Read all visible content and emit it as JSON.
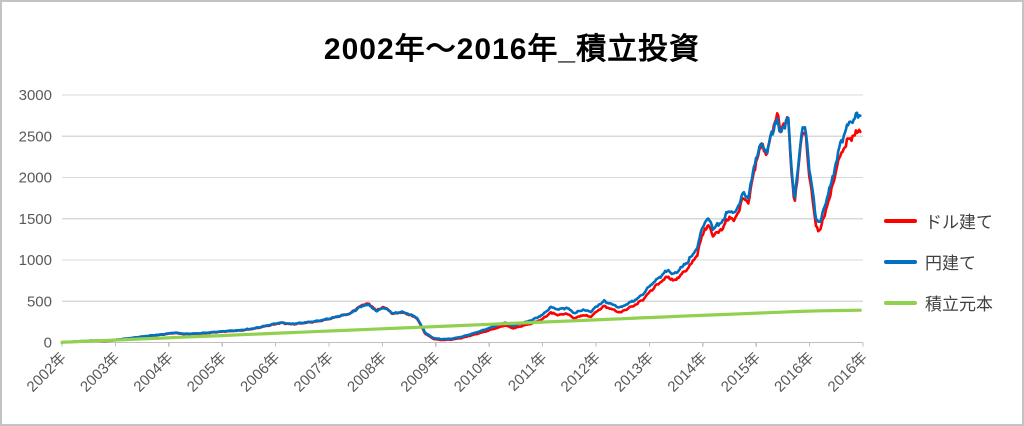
{
  "chart_data": {
    "type": "line",
    "title": "2002年～2016年_積立投資",
    "xlabel": "",
    "ylabel": "",
    "ylim": [
      0,
      3000
    ],
    "xlim": [
      2002,
      2017
    ],
    "y_ticks": [
      0,
      500,
      1000,
      1500,
      2000,
      2500,
      3000
    ],
    "x_tick_labels": [
      "2002年",
      "2003年",
      "2004年",
      "2005年",
      "2006年",
      "2007年",
      "2008年",
      "2009年",
      "2010年",
      "2011年",
      "2012年",
      "2013年",
      "2014年",
      "2015年",
      "2016年",
      "2016年"
    ],
    "grid": true,
    "legend_position": "right",
    "colors": {
      "grid": "#d9d9d9",
      "axis": "#bfbfbf",
      "tick_text": "#595959",
      "title_text": "#000000"
    },
    "series": [
      {
        "name": "ドル建て",
        "color": "#ff0000",
        "width": 2.6,
        "jitter": 0.022,
        "keypoints": [
          [
            2002.0,
            2
          ],
          [
            2002.3,
            11
          ],
          [
            2002.6,
            22
          ],
          [
            2002.8,
            16
          ],
          [
            2003.0,
            30
          ],
          [
            2003.3,
            52
          ],
          [
            2003.6,
            77
          ],
          [
            2003.9,
            97
          ],
          [
            2004.1,
            116
          ],
          [
            2004.3,
            101
          ],
          [
            2004.6,
            108
          ],
          [
            2004.9,
            126
          ],
          [
            2005.1,
            136
          ],
          [
            2005.35,
            146
          ],
          [
            2005.6,
            168
          ],
          [
            2005.9,
            210
          ],
          [
            2006.1,
            238
          ],
          [
            2006.3,
            221
          ],
          [
            2006.5,
            234
          ],
          [
            2006.8,
            258
          ],
          [
            2007.0,
            285
          ],
          [
            2007.2,
            320
          ],
          [
            2007.4,
            352
          ],
          [
            2007.55,
            428
          ],
          [
            2007.7,
            475
          ],
          [
            2007.8,
            442
          ],
          [
            2007.9,
            382
          ],
          [
            2008.0,
            432
          ],
          [
            2008.1,
            402
          ],
          [
            2008.2,
            346
          ],
          [
            2008.35,
            366
          ],
          [
            2008.5,
            338
          ],
          [
            2008.65,
            292
          ],
          [
            2008.8,
            108
          ],
          [
            2008.95,
            45
          ],
          [
            2009.1,
            30
          ],
          [
            2009.3,
            36
          ],
          [
            2009.5,
            58
          ],
          [
            2009.7,
            92
          ],
          [
            2009.9,
            128
          ],
          [
            2010.1,
            168
          ],
          [
            2010.3,
            208
          ],
          [
            2010.45,
            172
          ],
          [
            2010.6,
            198
          ],
          [
            2010.8,
            232
          ],
          [
            2011.0,
            285
          ],
          [
            2011.15,
            362
          ],
          [
            2011.3,
            332
          ],
          [
            2011.45,
            352
          ],
          [
            2011.6,
            292
          ],
          [
            2011.75,
            332
          ],
          [
            2011.9,
            312
          ],
          [
            2012.0,
            368
          ],
          [
            2012.15,
            440
          ],
          [
            2012.3,
            402
          ],
          [
            2012.45,
            362
          ],
          [
            2012.6,
            412
          ],
          [
            2012.75,
            462
          ],
          [
            2012.9,
            532
          ],
          [
            2013.0,
            612
          ],
          [
            2013.2,
            732
          ],
          [
            2013.35,
            802
          ],
          [
            2013.45,
            742
          ],
          [
            2013.6,
            822
          ],
          [
            2013.75,
            922
          ],
          [
            2013.9,
            1072
          ],
          [
            2014.0,
            1332
          ],
          [
            2014.1,
            1422
          ],
          [
            2014.2,
            1295
          ],
          [
            2014.35,
            1365
          ],
          [
            2014.5,
            1525
          ],
          [
            2014.6,
            1475
          ],
          [
            2014.75,
            1745
          ],
          [
            2014.85,
            1705
          ],
          [
            2015.0,
            2205
          ],
          [
            2015.1,
            2385
          ],
          [
            2015.2,
            2285
          ],
          [
            2015.3,
            2565
          ],
          [
            2015.4,
            2785
          ],
          [
            2015.45,
            2525
          ],
          [
            2015.5,
            2685
          ],
          [
            2015.55,
            2625
          ],
          [
            2015.6,
            2725
          ],
          [
            2015.65,
            2155
          ],
          [
            2015.72,
            1655
          ],
          [
            2015.78,
            2055
          ],
          [
            2015.83,
            2405
          ],
          [
            2015.88,
            2565
          ],
          [
            2015.93,
            2485
          ],
          [
            2016.0,
            2005
          ],
          [
            2016.06,
            1705
          ],
          [
            2016.12,
            1405
          ],
          [
            2016.2,
            1355
          ],
          [
            2016.3,
            1605
          ],
          [
            2016.4,
            1805
          ],
          [
            2016.5,
            2105
          ],
          [
            2016.6,
            2305
          ],
          [
            2016.7,
            2425
          ],
          [
            2016.8,
            2505
          ],
          [
            2016.95,
            2565
          ]
        ]
      },
      {
        "name": "円建て",
        "color": "#0070c0",
        "width": 2.6,
        "jitter": 0.022,
        "keypoints": [
          [
            2002.0,
            2
          ],
          [
            2002.3,
            12
          ],
          [
            2002.6,
            24
          ],
          [
            2002.8,
            18
          ],
          [
            2003.0,
            32
          ],
          [
            2003.3,
            55
          ],
          [
            2003.6,
            80
          ],
          [
            2003.9,
            100
          ],
          [
            2004.1,
            120
          ],
          [
            2004.3,
            105
          ],
          [
            2004.6,
            112
          ],
          [
            2004.9,
            130
          ],
          [
            2005.1,
            140
          ],
          [
            2005.35,
            150
          ],
          [
            2005.6,
            172
          ],
          [
            2005.9,
            215
          ],
          [
            2006.1,
            242
          ],
          [
            2006.3,
            225
          ],
          [
            2006.5,
            238
          ],
          [
            2006.8,
            262
          ],
          [
            2007.0,
            288
          ],
          [
            2007.2,
            322
          ],
          [
            2007.4,
            350
          ],
          [
            2007.55,
            418
          ],
          [
            2007.7,
            462
          ],
          [
            2007.8,
            430
          ],
          [
            2007.9,
            375
          ],
          [
            2008.0,
            422
          ],
          [
            2008.1,
            398
          ],
          [
            2008.2,
            350
          ],
          [
            2008.35,
            372
          ],
          [
            2008.5,
            345
          ],
          [
            2008.65,
            300
          ],
          [
            2008.8,
            120
          ],
          [
            2008.95,
            55
          ],
          [
            2009.1,
            40
          ],
          [
            2009.3,
            46
          ],
          [
            2009.5,
            72
          ],
          [
            2009.7,
            110
          ],
          [
            2009.9,
            152
          ],
          [
            2010.1,
            198
          ],
          [
            2010.3,
            242
          ],
          [
            2010.45,
            202
          ],
          [
            2010.6,
            232
          ],
          [
            2010.8,
            272
          ],
          [
            2011.0,
            335
          ],
          [
            2011.15,
            430
          ],
          [
            2011.3,
            400
          ],
          [
            2011.45,
            422
          ],
          [
            2011.6,
            355
          ],
          [
            2011.75,
            398
          ],
          [
            2011.9,
            372
          ],
          [
            2012.0,
            432
          ],
          [
            2012.15,
            500
          ],
          [
            2012.3,
            462
          ],
          [
            2012.45,
            422
          ],
          [
            2012.6,
            472
          ],
          [
            2012.75,
            522
          ],
          [
            2012.9,
            600
          ],
          [
            2013.0,
            680
          ],
          [
            2013.2,
            800
          ],
          [
            2013.35,
            880
          ],
          [
            2013.45,
            820
          ],
          [
            2013.6,
            905
          ],
          [
            2013.75,
            1005
          ],
          [
            2013.9,
            1155
          ],
          [
            2014.0,
            1420
          ],
          [
            2014.1,
            1505
          ],
          [
            2014.2,
            1385
          ],
          [
            2014.35,
            1455
          ],
          [
            2014.5,
            1605
          ],
          [
            2014.6,
            1555
          ],
          [
            2014.75,
            1805
          ],
          [
            2014.85,
            1755
          ],
          [
            2015.0,
            2255
          ],
          [
            2015.1,
            2405
          ],
          [
            2015.2,
            2305
          ],
          [
            2015.3,
            2555
          ],
          [
            2015.4,
            2705
          ],
          [
            2015.45,
            2505
          ],
          [
            2015.5,
            2655
          ],
          [
            2015.55,
            2605
          ],
          [
            2015.6,
            2750
          ],
          [
            2015.65,
            2200
          ],
          [
            2015.72,
            1705
          ],
          [
            2015.78,
            2105
          ],
          [
            2015.83,
            2455
          ],
          [
            2015.88,
            2605
          ],
          [
            2015.93,
            2555
          ],
          [
            2016.0,
            2105
          ],
          [
            2016.06,
            1805
          ],
          [
            2016.12,
            1505
          ],
          [
            2016.2,
            1455
          ],
          [
            2016.3,
            1705
          ],
          [
            2016.4,
            1905
          ],
          [
            2016.5,
            2205
          ],
          [
            2016.6,
            2455
          ],
          [
            2016.7,
            2605
          ],
          [
            2016.8,
            2705
          ],
          [
            2016.95,
            2765
          ]
        ]
      },
      {
        "name": "積立元本",
        "color": "#92d050",
        "width": 3.2,
        "jitter": 0,
        "keypoints": [
          [
            2002.0,
            3
          ],
          [
            2004.0,
            57
          ],
          [
            2006.0,
            112
          ],
          [
            2008.0,
            166
          ],
          [
            2010.0,
            220
          ],
          [
            2012.0,
            275
          ],
          [
            2014.0,
            330
          ],
          [
            2016.0,
            382
          ],
          [
            2016.95,
            392
          ]
        ]
      }
    ]
  }
}
